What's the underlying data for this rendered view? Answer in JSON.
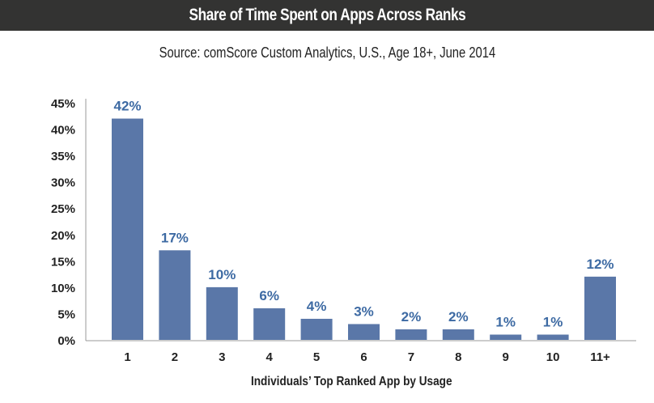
{
  "header": {
    "title": "Share of Time Spent on Apps Across Ranks"
  },
  "subtitle": "Source: comScore Custom Analytics, U.S., Age 18+, June 2014",
  "colors": {
    "bar": "#5a77a8",
    "label": "#3d6aa3",
    "header_bg": "#333332"
  },
  "chart_data": {
    "type": "bar",
    "title": "Share of Time Spent on Apps Across Ranks",
    "subtitle": "Source: comScore Custom Analytics, U.S., Age 18+, June 2014",
    "xlabel": "Individuals’ Top Ranked App by Usage",
    "ylabel": "",
    "categories": [
      "1",
      "2",
      "3",
      "4",
      "5",
      "6",
      "7",
      "8",
      "9",
      "10",
      "11+"
    ],
    "values": [
      42,
      17,
      10,
      6,
      4,
      3,
      2,
      2,
      1,
      1,
      12
    ],
    "data_labels": [
      "42%",
      "17%",
      "10%",
      "6%",
      "4%",
      "3%",
      "2%",
      "2%",
      "1%",
      "1%",
      "12%"
    ],
    "ylim": [
      0,
      45
    ],
    "yticks": [
      0,
      5,
      10,
      15,
      20,
      25,
      30,
      35,
      40,
      45
    ],
    "ytick_labels": [
      "0%",
      "5%",
      "10%",
      "15%",
      "20%",
      "25%",
      "30%",
      "35%",
      "40%",
      "45%"
    ],
    "grid": false,
    "legend": "none"
  }
}
